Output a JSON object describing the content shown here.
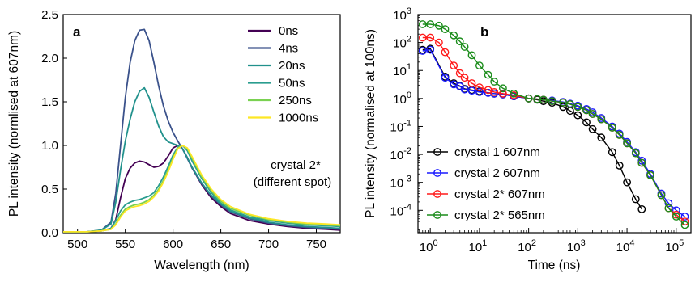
{
  "chart_data": [
    {
      "panel_label": "a",
      "type": "line",
      "xlabel": "Wavelength (nm)",
      "ylabel": "PL intensity (normlised at 607nm)",
      "xlim": [
        485,
        775
      ],
      "ylim": [
        0,
        2.5
      ],
      "x_ticks": [
        500,
        550,
        600,
        650,
        700,
        750
      ],
      "y_ticks": [
        0.0,
        0.5,
        1.0,
        1.5,
        2.0,
        2.5
      ],
      "y_tick_labels": [
        "0.0",
        "0.5",
        "1.0",
        "1.5",
        "2.0",
        "2.5"
      ],
      "grid": false,
      "legend_position": "top-right",
      "annotation": [
        "crystal 2*",
        "(different spot)"
      ],
      "series": [
        {
          "name": "0ns",
          "color": "#440154",
          "x": [
            485,
            510,
            525,
            535,
            540,
            545,
            550,
            555,
            560,
            565,
            570,
            575,
            580,
            585,
            590,
            595,
            600,
            605,
            610,
            615,
            620,
            630,
            640,
            650,
            660,
            680,
            700,
            720,
            740,
            760,
            775
          ],
          "y": [
            0.01,
            0.01,
            0.02,
            0.05,
            0.15,
            0.4,
            0.62,
            0.74,
            0.8,
            0.82,
            0.81,
            0.78,
            0.75,
            0.76,
            0.8,
            0.88,
            0.97,
            1.0,
            0.96,
            0.86,
            0.74,
            0.55,
            0.4,
            0.3,
            0.22,
            0.14,
            0.1,
            0.07,
            0.05,
            0.04,
            0.03
          ]
        },
        {
          "name": "4ns",
          "color": "#3b528b",
          "x": [
            485,
            510,
            525,
            535,
            540,
            545,
            550,
            555,
            560,
            565,
            570,
            575,
            580,
            585,
            590,
            595,
            600,
            605,
            610,
            615,
            620,
            630,
            640,
            650,
            660,
            680,
            700,
            720,
            740,
            760,
            775
          ],
          "y": [
            0.01,
            0.01,
            0.03,
            0.12,
            0.45,
            1.0,
            1.55,
            1.95,
            2.2,
            2.32,
            2.33,
            2.2,
            1.95,
            1.68,
            1.45,
            1.28,
            1.15,
            1.05,
            0.96,
            0.85,
            0.74,
            0.56,
            0.42,
            0.32,
            0.24,
            0.16,
            0.11,
            0.08,
            0.06,
            0.05,
            0.04
          ]
        },
        {
          "name": "20ns",
          "color": "#21918c",
          "x": [
            485,
            510,
            525,
            535,
            540,
            545,
            550,
            555,
            560,
            565,
            570,
            575,
            580,
            585,
            590,
            595,
            600,
            605,
            610,
            615,
            620,
            630,
            640,
            650,
            660,
            680,
            700,
            720,
            740,
            760,
            775
          ],
          "y": [
            0.01,
            0.01,
            0.03,
            0.1,
            0.35,
            0.72,
            1.05,
            1.3,
            1.5,
            1.62,
            1.66,
            1.55,
            1.38,
            1.22,
            1.1,
            1.04,
            1.02,
            1.0,
            0.96,
            0.86,
            0.75,
            0.57,
            0.43,
            0.33,
            0.25,
            0.17,
            0.12,
            0.09,
            0.07,
            0.06,
            0.05
          ]
        },
        {
          "name": "50ns",
          "color": "#2a9d8f",
          "x": [
            485,
            510,
            525,
            535,
            540,
            545,
            550,
            555,
            560,
            565,
            570,
            575,
            580,
            585,
            590,
            595,
            600,
            605,
            610,
            615,
            620,
            630,
            640,
            650,
            660,
            680,
            700,
            720,
            740,
            760,
            775
          ],
          "y": [
            0.01,
            0.01,
            0.02,
            0.05,
            0.14,
            0.25,
            0.32,
            0.35,
            0.37,
            0.38,
            0.4,
            0.42,
            0.46,
            0.54,
            0.64,
            0.76,
            0.89,
            0.98,
            1.0,
            0.94,
            0.82,
            0.62,
            0.46,
            0.34,
            0.26,
            0.18,
            0.14,
            0.11,
            0.09,
            0.08,
            0.07
          ]
        },
        {
          "name": "250ns",
          "color": "#7ad151",
          "x": [
            485,
            510,
            525,
            535,
            540,
            545,
            550,
            555,
            560,
            565,
            570,
            575,
            580,
            585,
            590,
            595,
            600,
            605,
            610,
            615,
            620,
            630,
            640,
            650,
            660,
            680,
            700,
            720,
            740,
            760,
            775
          ],
          "y": [
            0.01,
            0.01,
            0.02,
            0.04,
            0.1,
            0.2,
            0.27,
            0.3,
            0.32,
            0.33,
            0.35,
            0.38,
            0.43,
            0.5,
            0.6,
            0.72,
            0.86,
            0.97,
            1.0,
            0.96,
            0.85,
            0.64,
            0.48,
            0.36,
            0.28,
            0.2,
            0.15,
            0.12,
            0.1,
            0.09,
            0.08
          ]
        },
        {
          "name": "1000ns",
          "color": "#fde725",
          "x": [
            485,
            510,
            525,
            535,
            540,
            545,
            550,
            555,
            560,
            565,
            570,
            575,
            580,
            585,
            590,
            595,
            600,
            605,
            610,
            615,
            620,
            630,
            640,
            650,
            660,
            680,
            700,
            720,
            740,
            760,
            775
          ],
          "y": [
            0.01,
            0.01,
            0.02,
            0.04,
            0.09,
            0.18,
            0.25,
            0.28,
            0.3,
            0.31,
            0.33,
            0.36,
            0.41,
            0.48,
            0.58,
            0.7,
            0.84,
            0.96,
            1.0,
            0.97,
            0.87,
            0.66,
            0.5,
            0.38,
            0.3,
            0.21,
            0.16,
            0.13,
            0.11,
            0.1,
            0.09
          ]
        }
      ]
    },
    {
      "panel_label": "b",
      "type": "line",
      "xlabel": "Time (ns)",
      "ylabel": "PL intensity (normalised at 100ns)",
      "x_scale": "log",
      "y_scale": "log",
      "x_exp_range": [
        -0.25,
        5.3
      ],
      "y_exp_range": [
        -4.8,
        3.0
      ],
      "x_tick_exponents": [
        0,
        1,
        2,
        3,
        4,
        5
      ],
      "y_tick_exponents": [
        -4,
        -3,
        -2,
        -1,
        0,
        1,
        2,
        3
      ],
      "tick_base": "10",
      "grid": false,
      "legend_position": "bottom-left",
      "series": [
        {
          "name": "crystal 1 607nm",
          "color": "#000000",
          "x": [
            0.7,
            1,
            2,
            3,
            4,
            5,
            7,
            10,
            15,
            20,
            30,
            50,
            100,
            150,
            200,
            300,
            500,
            700,
            1000,
            1500,
            2000,
            3000,
            5000,
            7000,
            10000,
            15000,
            20000
          ],
          "y": [
            55,
            60,
            6,
            3.5,
            2.8,
            2.2,
            2,
            1.8,
            1.6,
            1.5,
            1.4,
            1.2,
            1.0,
            0.9,
            0.8,
            0.7,
            0.5,
            0.36,
            0.25,
            0.14,
            0.08,
            0.04,
            0.012,
            0.004,
            0.001,
            0.00025,
            0.00011
          ]
        },
        {
          "name": "crystal 2 607nm",
          "color": "#1a1aff",
          "x": [
            0.7,
            1,
            2,
            3,
            4,
            5,
            7,
            10,
            15,
            20,
            30,
            50,
            100,
            150,
            200,
            300,
            500,
            700,
            1000,
            1500,
            2000,
            3000,
            5000,
            7000,
            10000,
            15000,
            20000,
            30000,
            50000,
            70000,
            100000,
            150000
          ],
          "y": [
            50,
            55,
            5.5,
            3.2,
            2.7,
            2.1,
            1.9,
            1.7,
            1.6,
            1.5,
            1.4,
            1.2,
            1.0,
            0.95,
            0.9,
            0.85,
            0.75,
            0.65,
            0.55,
            0.42,
            0.32,
            0.2,
            0.1,
            0.055,
            0.028,
            0.012,
            0.006,
            0.002,
            0.0004,
            0.00018,
            0.0001,
            6e-05
          ]
        },
        {
          "name": "crystal 2* 607nm",
          "color": "#ff1a1a",
          "x": [
            0.7,
            1,
            1.5,
            2,
            3,
            4,
            5,
            7,
            10,
            15,
            20,
            30,
            50,
            100,
            150,
            200,
            300,
            500,
            700,
            1000,
            1500,
            2000,
            3000,
            5000,
            7000,
            10000,
            15000,
            20000,
            30000,
            50000,
            70000,
            100000,
            150000
          ],
          "y": [
            150,
            150,
            100,
            45,
            15,
            8,
            5.5,
            3.5,
            2.5,
            2,
            1.7,
            1.5,
            1.3,
            1.0,
            0.95,
            0.9,
            0.8,
            0.72,
            0.62,
            0.5,
            0.38,
            0.28,
            0.18,
            0.09,
            0.05,
            0.025,
            0.011,
            0.005,
            0.0018,
            0.00035,
            0.00012,
            7e-05,
            4e-05
          ]
        },
        {
          "name": "crystal 2* 565nm",
          "color": "#1a8c1a",
          "x": [
            0.7,
            1,
            1.5,
            2,
            3,
            4,
            5,
            7,
            10,
            15,
            20,
            30,
            50,
            100,
            150,
            200,
            300,
            500,
            700,
            1000,
            1500,
            2000,
            3000,
            5000,
            7000,
            10000,
            15000,
            20000,
            30000,
            50000,
            70000,
            100000,
            150000
          ],
          "y": [
            450,
            450,
            400,
            300,
            180,
            110,
            70,
            35,
            15,
            7,
            4,
            2.3,
            1.5,
            1.0,
            0.95,
            0.9,
            0.8,
            0.72,
            0.62,
            0.5,
            0.38,
            0.28,
            0.18,
            0.09,
            0.05,
            0.025,
            0.011,
            0.005,
            0.0018,
            0.00035,
            0.00012,
            6e-05,
            3e-05
          ]
        }
      ]
    }
  ]
}
